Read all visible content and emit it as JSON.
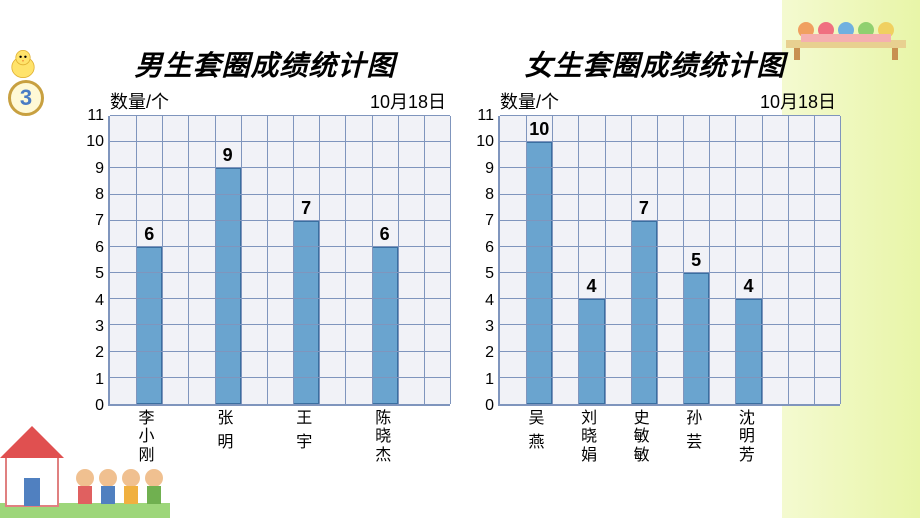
{
  "slide_number": "3",
  "date_label": "10月18日",
  "y_axis_label": "数量/个",
  "ylim": [
    0,
    11
  ],
  "ytick_step": 1,
  "grid_cols": 13,
  "bar_color": "#6aa4cf",
  "bar_border_color": "#3a6fa0",
  "grid_line_color": "#7f95bd",
  "grid_bg": "#f1f2f7",
  "background_color": "#ffffff",
  "accent_bg": "#e8f5a8",
  "title_fontsize": 28,
  "label_fontsize": 16,
  "boys": {
    "title": "男生套圈成绩统计图",
    "categories": [
      "李小刚",
      "张 明",
      "王 宇",
      "陈晓杰"
    ],
    "values": [
      6,
      9,
      7,
      6
    ]
  },
  "girls": {
    "title": "女生套圈成绩统计图",
    "categories": [
      "吴 燕",
      "刘晓娟",
      "史敏敏",
      "孙 芸",
      "沈明芳"
    ],
    "values": [
      10,
      4,
      7,
      5,
      4
    ]
  }
}
